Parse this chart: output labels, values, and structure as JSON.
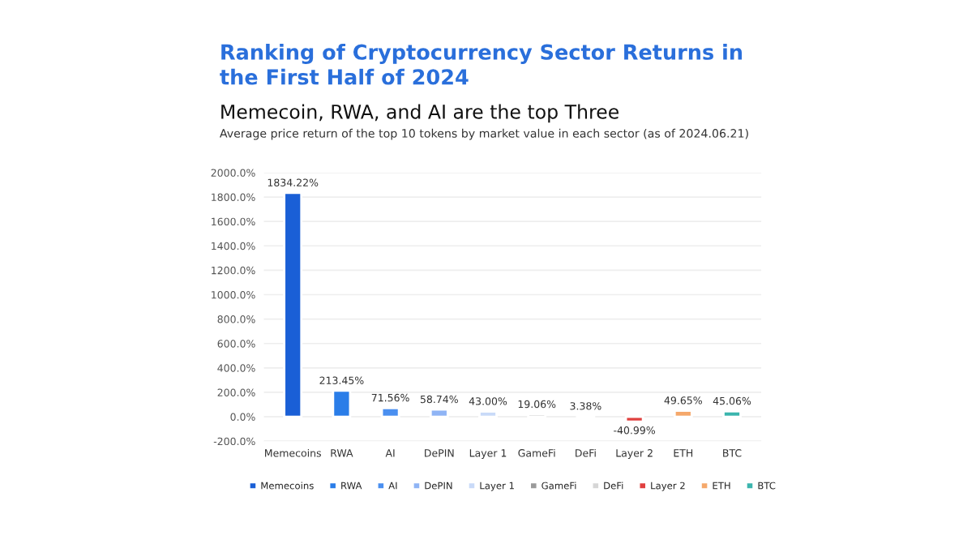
{
  "chart_data": {
    "type": "bar",
    "title": "Ranking of Cryptocurrency Sector Returns in\nthe First Half of 2024",
    "subtitle": "Memecoin, RWA, and AI are the top Three",
    "annotations": [
      "Average price return of the top 10 tokens by market value in each sector (as of 2024.06.21)"
    ],
    "categories": [
      "Memecoins",
      "RWA",
      "AI",
      "DePIN",
      "Layer 1",
      "GameFi",
      "DeFi",
      "Layer 2",
      "ETH",
      "BTC"
    ],
    "series": [
      {
        "name": "Memecoins",
        "color": "#1a5fd6",
        "values": [
          1834.22,
          null,
          null,
          null,
          null,
          null,
          null,
          null,
          null,
          null
        ],
        "value_labels": [
          "1834.22%",
          null,
          null,
          null,
          null,
          null,
          null,
          null,
          null,
          null
        ]
      },
      {
        "name": "RWA",
        "color": "#2a7de8",
        "values": [
          null,
          213.45,
          null,
          null,
          null,
          null,
          null,
          null,
          null,
          null
        ],
        "value_labels": [
          null,
          "213.45%",
          null,
          null,
          null,
          null,
          null,
          null,
          null,
          null
        ]
      },
      {
        "name": "AI",
        "color": "#4a8ff0",
        "values": [
          null,
          null,
          71.56,
          null,
          null,
          null,
          null,
          null,
          null,
          null
        ],
        "value_labels": [
          null,
          null,
          "71.56%",
          null,
          null,
          null,
          null,
          null,
          null,
          null
        ]
      },
      {
        "name": "DePIN",
        "color": "#8fb4f5",
        "values": [
          null,
          null,
          null,
          58.74,
          null,
          null,
          null,
          null,
          null,
          null
        ],
        "value_labels": [
          null,
          null,
          null,
          "58.74%",
          null,
          null,
          null,
          null,
          null,
          null
        ]
      },
      {
        "name": "Layer 1",
        "color": "#c9daf8",
        "values": [
          null,
          null,
          null,
          null,
          43.0,
          null,
          null,
          null,
          null,
          null
        ],
        "value_labels": [
          null,
          null,
          null,
          null,
          "43.00%",
          null,
          null,
          null,
          null,
          null
        ]
      },
      {
        "name": "GameFi",
        "color": "#9a9a9a",
        "values": [
          null,
          null,
          null,
          null,
          null,
          19.06,
          null,
          null,
          null,
          null
        ],
        "value_labels": [
          null,
          null,
          null,
          null,
          null,
          "19.06%",
          null,
          null,
          null,
          null
        ]
      },
      {
        "name": "DeFi",
        "color": "#d6d6d6",
        "values": [
          null,
          null,
          null,
          null,
          null,
          null,
          3.38,
          null,
          null,
          null
        ],
        "value_labels": [
          null,
          null,
          null,
          null,
          null,
          null,
          "3.38%",
          null,
          null,
          null
        ]
      },
      {
        "name": "Layer 2",
        "color": "#e0403f",
        "values": [
          null,
          null,
          null,
          null,
          null,
          null,
          null,
          -40.99,
          null,
          null
        ],
        "value_labels": [
          null,
          null,
          null,
          null,
          null,
          null,
          null,
          "-40.99%",
          null,
          null
        ]
      },
      {
        "name": "ETH",
        "color": "#f5a86b",
        "values": [
          null,
          null,
          null,
          null,
          null,
          null,
          null,
          null,
          49.65,
          null
        ],
        "value_labels": [
          null,
          null,
          null,
          null,
          null,
          null,
          null,
          null,
          "49.65%",
          null
        ]
      },
      {
        "name": "BTC",
        "color": "#3bb5ae",
        "values": [
          null,
          null,
          null,
          null,
          null,
          null,
          null,
          null,
          null,
          45.06
        ],
        "value_labels": [
          null,
          null,
          null,
          null,
          null,
          null,
          null,
          null,
          null,
          "45.06%"
        ]
      }
    ],
    "ylim": [
      -200,
      2000
    ],
    "yticks": [
      {
        "value": -200,
        "label": "-200.0%"
      },
      {
        "value": 0,
        "label": "0.0%"
      },
      {
        "value": 200,
        "label": "200.0%"
      },
      {
        "value": 400,
        "label": "400.0%"
      },
      {
        "value": 600,
        "label": "600.0%"
      },
      {
        "value": 800,
        "label": "800.0%"
      },
      {
        "value": 1000,
        "label": "1000.0%"
      },
      {
        "value": 1200,
        "label": "1200.0%"
      },
      {
        "value": 1400,
        "label": "1400.0%"
      },
      {
        "value": 1600,
        "label": "1600.0%"
      },
      {
        "value": 1800,
        "label": "1800.0%"
      },
      {
        "value": 2000,
        "label": "2000.0%"
      }
    ],
    "grid": "y",
    "legend": "bottom"
  }
}
